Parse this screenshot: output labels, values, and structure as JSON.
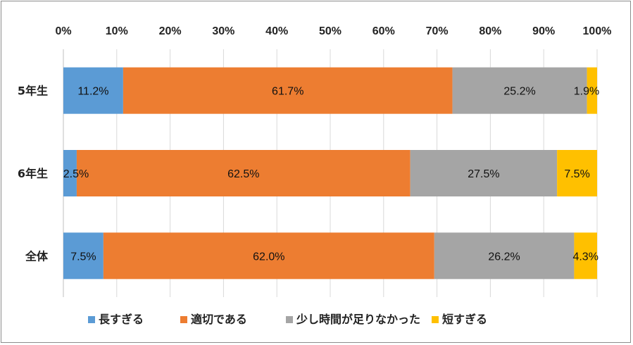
{
  "chart_data": {
    "type": "bar",
    "orientation": "horizontal-stacked-100",
    "title": "",
    "xlabel": "",
    "ylabel": "",
    "xlim": [
      0,
      100
    ],
    "x_ticks": [
      "0%",
      "10%",
      "20%",
      "30%",
      "40%",
      "50%",
      "60%",
      "70%",
      "80%",
      "90%",
      "100%"
    ],
    "grid": true,
    "legend_position": "bottom",
    "categories": [
      "5年生",
      "6年生",
      "全体"
    ],
    "series": [
      {
        "name": "長すぎる",
        "color": "#5b9bd5",
        "values": [
          11.2,
          2.5,
          7.5
        ],
        "labels": [
          "11.2%",
          "2.5%",
          "7.5%"
        ]
      },
      {
        "name": "適切である",
        "color": "#ed7d31",
        "values": [
          61.7,
          62.5,
          62.0
        ],
        "labels": [
          "61.7%",
          "62.5%",
          "62.0%"
        ]
      },
      {
        "name": "少し時間が足りなかった",
        "color": "#a5a5a5",
        "values": [
          25.2,
          27.5,
          26.2
        ],
        "labels": [
          "25.2%",
          "27.5%",
          "26.2%"
        ]
      },
      {
        "name": "短すぎる",
        "color": "#ffc000",
        "values": [
          1.9,
          7.5,
          4.3
        ],
        "labels": [
          "1.9%",
          "7.5%",
          "4.3%"
        ]
      }
    ]
  }
}
